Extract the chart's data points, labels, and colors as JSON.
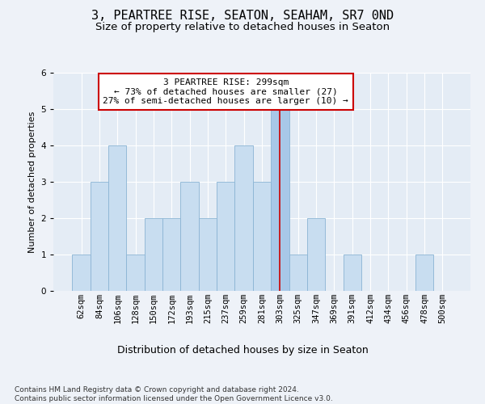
{
  "title1": "3, PEARTREE RISE, SEATON, SEAHAM, SR7 0ND",
  "title2": "Size of property relative to detached houses in Seaton",
  "xlabel": "Distribution of detached houses by size in Seaton",
  "ylabel": "Number of detached properties",
  "footnote": "Contains HM Land Registry data © Crown copyright and database right 2024.\nContains public sector information licensed under the Open Government Licence v3.0.",
  "categories": [
    "62sqm",
    "84sqm",
    "106sqm",
    "128sqm",
    "150sqm",
    "172sqm",
    "193sqm",
    "215sqm",
    "237sqm",
    "259sqm",
    "281sqm",
    "303sqm",
    "325sqm",
    "347sqm",
    "369sqm",
    "391sqm",
    "412sqm",
    "434sqm",
    "456sqm",
    "478sqm",
    "500sqm"
  ],
  "values": [
    1,
    3,
    4,
    1,
    2,
    2,
    3,
    2,
    3,
    4,
    3,
    5,
    1,
    2,
    0,
    1,
    0,
    0,
    0,
    1,
    0
  ],
  "highlight_index": 11,
  "bar_color": "#ccdce f",
  "bar_color_hex": "#c8ddf0",
  "bar_edge_color": "#8ab4d4",
  "highlight_bar_color": "#a8c8e8",
  "highlight_line_color": "#cc0000",
  "annotation_text": "3 PEARTREE RISE: 299sqm\n← 73% of detached houses are smaller (27)\n27% of semi-detached houses are larger (10) →",
  "annotation_box_facecolor": "#ffffff",
  "annotation_box_edgecolor": "#cc0000",
  "ylim": [
    0,
    6
  ],
  "yticks": [
    0,
    1,
    2,
    3,
    4,
    5,
    6
  ],
  "background_color": "#eef2f8",
  "plot_background_color": "#e4ecf5",
  "grid_color": "#ffffff",
  "title1_fontsize": 11,
  "title2_fontsize": 9.5,
  "xlabel_fontsize": 9,
  "ylabel_fontsize": 8,
  "tick_fontsize": 7.5,
  "annotation_fontsize": 8,
  "footnote_fontsize": 6.5
}
